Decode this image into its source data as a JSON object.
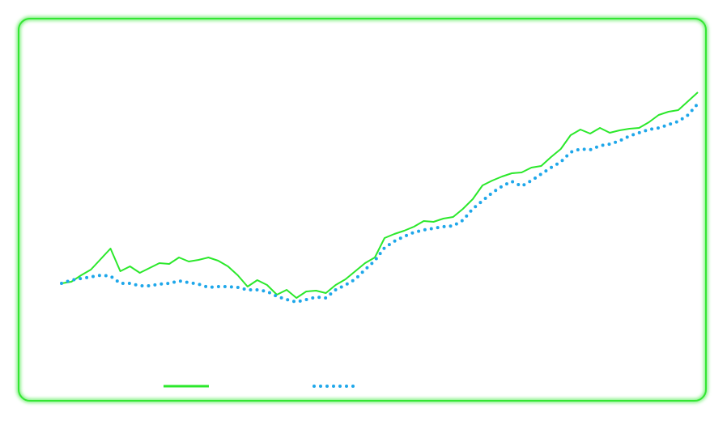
{
  "chart_data": {
    "type": "line",
    "ylim": [
      0,
      340
    ],
    "series": [
      {
        "color": "#2be82b",
        "style": "solid",
        "values": [
          90,
          92,
          100,
          107,
          120,
          133,
          105,
          111,
          103,
          109,
          115,
          114,
          122,
          117,
          119,
          122,
          118,
          111,
          100,
          86,
          94,
          88,
          76,
          82,
          72,
          80,
          81,
          78,
          88,
          95,
          105,
          115,
          122,
          146,
          151,
          155,
          160,
          167,
          166,
          170,
          172,
          182,
          194,
          211,
          217,
          222,
          226,
          227,
          233,
          235,
          246,
          256,
          273,
          280,
          275,
          282,
          276,
          279,
          281,
          282,
          289,
          298,
          302,
          304,
          315,
          326
        ]
      },
      {
        "color": "#1ea7ea",
        "style": "dotted",
        "values": [
          90,
          94,
          96,
          98,
          100,
          99,
          90,
          90,
          87,
          87,
          89,
          90,
          93,
          91,
          89,
          85,
          86,
          86,
          85,
          82,
          82,
          80,
          74,
          70,
          67,
          70,
          73,
          72,
          82,
          88,
          95,
          107,
          118,
          134,
          142,
          148,
          153,
          156,
          158,
          160,
          161,
          168,
          182,
          192,
          202,
          210,
          216,
          210,
          217,
          225,
          233,
          240,
          252,
          256,
          255,
          260,
          262,
          266,
          272,
          276,
          280,
          282,
          286,
          290,
          298,
          312
        ]
      }
    ]
  }
}
